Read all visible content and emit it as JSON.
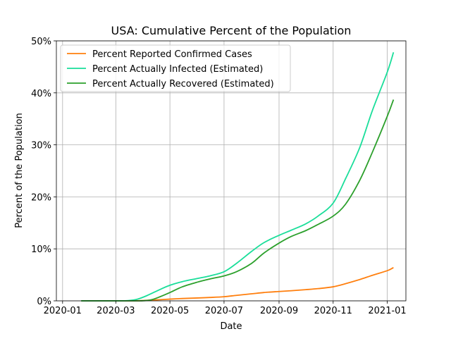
{
  "chart_data": {
    "type": "line",
    "title": "USA: Cumulative Percent of the Population",
    "xlabel": "Date",
    "ylabel": "Percent of the Population",
    "x_ticks": [
      "2020-01",
      "2020-03",
      "2020-05",
      "2020-07",
      "2020-09",
      "2020-11",
      "2021-01"
    ],
    "y_ticks": [
      "0%",
      "10%",
      "20%",
      "30%",
      "40%",
      "50%"
    ],
    "xlim": [
      "2019-12-25",
      "2021-01-22"
    ],
    "ylim": [
      0,
      50
    ],
    "grid": true,
    "legend_position": "upper-left",
    "series": [
      {
        "name": "Percent Reported Confirmed Cases",
        "color": "#ff7f0e",
        "points": [
          [
            "2020-01-22",
            0
          ],
          [
            "2020-03-01",
            0
          ],
          [
            "2020-03-20",
            0.01
          ],
          [
            "2020-04-01",
            0.06
          ],
          [
            "2020-04-15",
            0.18
          ],
          [
            "2020-05-01",
            0.33
          ],
          [
            "2020-05-15",
            0.45
          ],
          [
            "2020-06-01",
            0.55
          ],
          [
            "2020-06-15",
            0.65
          ],
          [
            "2020-07-01",
            0.8
          ],
          [
            "2020-07-15",
            1.05
          ],
          [
            "2020-08-01",
            1.35
          ],
          [
            "2020-08-15",
            1.6
          ],
          [
            "2020-09-01",
            1.8
          ],
          [
            "2020-09-15",
            1.95
          ],
          [
            "2020-10-01",
            2.15
          ],
          [
            "2020-10-15",
            2.35
          ],
          [
            "2020-11-01",
            2.7
          ],
          [
            "2020-11-15",
            3.3
          ],
          [
            "2020-12-01",
            4.1
          ],
          [
            "2020-12-15",
            4.9
          ],
          [
            "2021-01-01",
            5.8
          ],
          [
            "2021-01-08",
            6.4
          ]
        ]
      },
      {
        "name": "Percent Actually Infected (Estimated)",
        "color": "#1ade9a",
        "points": [
          [
            "2020-01-22",
            0
          ],
          [
            "2020-03-01",
            0
          ],
          [
            "2020-03-15",
            0.05
          ],
          [
            "2020-03-25",
            0.3
          ],
          [
            "2020-04-05",
            1.0
          ],
          [
            "2020-04-20",
            2.2
          ],
          [
            "2020-05-01",
            3.0
          ],
          [
            "2020-05-15",
            3.7
          ],
          [
            "2020-06-01",
            4.3
          ],
          [
            "2020-06-15",
            4.8
          ],
          [
            "2020-07-01",
            5.6
          ],
          [
            "2020-07-15",
            7.2
          ],
          [
            "2020-08-01",
            9.5
          ],
          [
            "2020-08-15",
            11.2
          ],
          [
            "2020-09-01",
            12.6
          ],
          [
            "2020-09-15",
            13.6
          ],
          [
            "2020-10-01",
            14.8
          ],
          [
            "2020-10-15",
            16.3
          ],
          [
            "2020-11-01",
            18.8
          ],
          [
            "2020-11-15",
            23.5
          ],
          [
            "2020-12-01",
            29.5
          ],
          [
            "2020-12-15",
            36.5
          ],
          [
            "2021-01-01",
            44.0
          ],
          [
            "2021-01-08",
            47.8
          ]
        ]
      },
      {
        "name": "Percent Actually Recovered (Estimated)",
        "color": "#2ca02c",
        "points": [
          [
            "2020-01-22",
            0
          ],
          [
            "2020-03-20",
            0
          ],
          [
            "2020-04-01",
            0.02
          ],
          [
            "2020-04-10",
            0.2
          ],
          [
            "2020-04-20",
            0.8
          ],
          [
            "2020-05-01",
            1.6
          ],
          [
            "2020-05-15",
            2.7
          ],
          [
            "2020-06-01",
            3.6
          ],
          [
            "2020-06-15",
            4.2
          ],
          [
            "2020-07-01",
            4.8
          ],
          [
            "2020-07-15",
            5.6
          ],
          [
            "2020-08-01",
            7.2
          ],
          [
            "2020-08-15",
            9.2
          ],
          [
            "2020-09-01",
            11.1
          ],
          [
            "2020-09-15",
            12.4
          ],
          [
            "2020-10-01",
            13.5
          ],
          [
            "2020-10-15",
            14.7
          ],
          [
            "2020-11-01",
            16.3
          ],
          [
            "2020-11-15",
            18.6
          ],
          [
            "2020-12-01",
            23.2
          ],
          [
            "2020-12-15",
            28.5
          ],
          [
            "2021-01-01",
            35.5
          ],
          [
            "2021-01-08",
            38.7
          ]
        ]
      }
    ]
  }
}
